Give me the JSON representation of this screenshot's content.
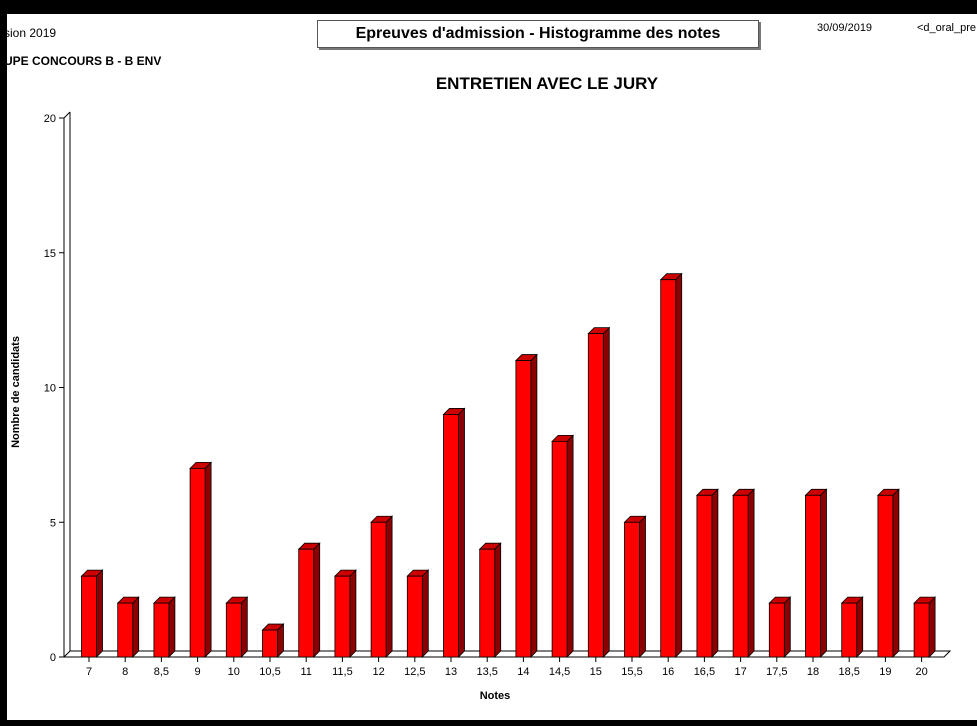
{
  "header": {
    "session": "sion 2019",
    "groupe": "UPE CONCOURS B - B ENV",
    "report_title": "Epreuves d'admission - Histogramme des notes",
    "date": "30/09/2019",
    "report_code": "<d_oral_pre"
  },
  "chart_data": {
    "type": "bar",
    "title": "ENTRETIEN AVEC LE JURY",
    "xlabel": "Notes",
    "ylabel": "Nombre de candidats",
    "ylim": [
      0,
      20
    ],
    "yticks": [
      0,
      5,
      10,
      15,
      20
    ],
    "categories": [
      "7",
      "8",
      "8,5",
      "9",
      "10",
      "10,5",
      "11",
      "11,5",
      "12",
      "12,5",
      "13",
      "13,5",
      "14",
      "14,5",
      "15",
      "15,5",
      "16",
      "16,5",
      "17",
      "17,5",
      "18",
      "18,5",
      "19",
      "20"
    ],
    "values": [
      3,
      2,
      2,
      7,
      2,
      1,
      4,
      3,
      5,
      3,
      9,
      4,
      11,
      8,
      12,
      5,
      14,
      6,
      6,
      2,
      6,
      2,
      6,
      2
    ],
    "colors": {
      "bar_front": "#ff0000",
      "bar_side": "#8b0000",
      "bar_top": "#cc0000",
      "axis": "#000000"
    }
  }
}
